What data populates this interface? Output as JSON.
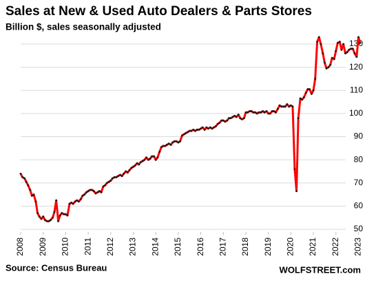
{
  "chart_data": {
    "type": "line",
    "title": "Sales at New & Used Auto Dealers & Parts Stores",
    "subtitle": "Billion $, sales seasonally adjusted",
    "source": "Source: Census Bureau",
    "credit": "WOLFSTREET.com",
    "x": [
      2008,
      2008.08,
      2008.17,
      2008.25,
      2008.33,
      2008.42,
      2008.5,
      2008.58,
      2008.67,
      2008.75,
      2008.83,
      2008.92,
      2009,
      2009.08,
      2009.17,
      2009.25,
      2009.33,
      2009.42,
      2009.5,
      2009.58,
      2009.67,
      2009.75,
      2009.83,
      2009.92,
      2010,
      2010.08,
      2010.17,
      2010.25,
      2010.33,
      2010.42,
      2010.5,
      2010.58,
      2010.67,
      2010.75,
      2010.83,
      2010.92,
      2011,
      2011.08,
      2011.17,
      2011.25,
      2011.33,
      2011.42,
      2011.5,
      2011.58,
      2011.67,
      2011.75,
      2011.83,
      2011.92,
      2012,
      2012.08,
      2012.17,
      2012.25,
      2012.33,
      2012.42,
      2012.5,
      2012.58,
      2012.67,
      2012.75,
      2012.83,
      2012.92,
      2013,
      2013.08,
      2013.17,
      2013.25,
      2013.33,
      2013.42,
      2013.5,
      2013.58,
      2013.67,
      2013.75,
      2013.83,
      2013.92,
      2014,
      2014.08,
      2014.17,
      2014.25,
      2014.33,
      2014.42,
      2014.5,
      2014.58,
      2014.67,
      2014.75,
      2014.83,
      2014.92,
      2015,
      2015.08,
      2015.17,
      2015.25,
      2015.33,
      2015.42,
      2015.5,
      2015.58,
      2015.67,
      2015.75,
      2015.83,
      2015.92,
      2016,
      2016.08,
      2016.17,
      2016.25,
      2016.33,
      2016.42,
      2016.5,
      2016.58,
      2016.67,
      2016.75,
      2016.83,
      2016.92,
      2017,
      2017.08,
      2017.17,
      2017.25,
      2017.33,
      2017.42,
      2017.5,
      2017.58,
      2017.67,
      2017.75,
      2017.83,
      2017.92,
      2018,
      2018.08,
      2018.17,
      2018.25,
      2018.33,
      2018.42,
      2018.5,
      2018.58,
      2018.67,
      2018.75,
      2018.83,
      2018.92,
      2019,
      2019.08,
      2019.17,
      2019.25,
      2019.33,
      2019.42,
      2019.5,
      2019.58,
      2019.67,
      2019.75,
      2019.83,
      2019.92,
      2020,
      2020.08,
      2020.17,
      2020.25,
      2020.33,
      2020.42,
      2020.5,
      2020.58,
      2020.67,
      2020.75,
      2020.83,
      2020.92,
      2021,
      2021.08,
      2021.17,
      2021.25,
      2021.33,
      2021.42,
      2021.5,
      2021.58,
      2021.67,
      2021.75,
      2021.83,
      2021.92,
      2022,
      2022.08,
      2022.17,
      2022.25,
      2022.33,
      2022.42,
      2022.5,
      2022.58,
      2022.67,
      2022.75,
      2022.83,
      2022.92,
      2023,
      2023.08
    ],
    "series": [
      {
        "color": "#ff0000",
        "marker_color": "#1a1a1a",
        "values": [
          74,
          72.5,
          72,
          70.5,
          69,
          67,
          64.5,
          65,
          62,
          57,
          55.5,
          54.5,
          55.5,
          54,
          53.5,
          53.5,
          54,
          55,
          57.5,
          62.5,
          53.5,
          56,
          57,
          56.5,
          56.5,
          56,
          61,
          61.5,
          61,
          62,
          62.5,
          62,
          63,
          64.5,
          65,
          66,
          66.5,
          67,
          67,
          66.5,
          65.5,
          66,
          66.5,
          66,
          68.5,
          69,
          70,
          70.5,
          71,
          72,
          72.5,
          72.5,
          73,
          73.5,
          73,
          74,
          75,
          74.5,
          75.5,
          76.5,
          77,
          77.5,
          78.5,
          78,
          79,
          79.5,
          80,
          81,
          80,
          80.5,
          81.5,
          81.5,
          80,
          81,
          83.5,
          85.5,
          86,
          86,
          86.5,
          87,
          86.5,
          87.5,
          88,
          88,
          87.5,
          88,
          90.5,
          91,
          91.5,
          92,
          92.5,
          92.5,
          93,
          92.5,
          93,
          93,
          93.5,
          94,
          93,
          94,
          93.5,
          94,
          93.5,
          94,
          94.5,
          95.5,
          96,
          97,
          97,
          96.5,
          97,
          98,
          98,
          98.5,
          99,
          98.5,
          99.5,
          98,
          97.5,
          98,
          100.5,
          100.5,
          101,
          101,
          100.5,
          100.5,
          100,
          100.5,
          100.5,
          101,
          100.5,
          101,
          100,
          100,
          101,
          101,
          100.5,
          102,
          103.5,
          103,
          103,
          103,
          104,
          103,
          103.5,
          103,
          76,
          66.5,
          98,
          106.5,
          106,
          107,
          109,
          110.5,
          110.5,
          108.5,
          110,
          115,
          131,
          133,
          130,
          126,
          122,
          119.5,
          120,
          121,
          124,
          123.5,
          127,
          130.5,
          131,
          127.5,
          130,
          126,
          126.5,
          127.5,
          128,
          128,
          126,
          124.5,
          133,
          130.5
        ]
      }
    ],
    "xlim": [
      2008,
      2023.2
    ],
    "xticks": [
      2008,
      2009,
      2010,
      2011,
      2012,
      2013,
      2014,
      2015,
      2016,
      2017,
      2018,
      2019,
      2020,
      2021,
      2022,
      2023
    ],
    "ylim": [
      50,
      130
    ],
    "yticks": [
      50,
      60,
      70,
      80,
      90,
      100,
      110,
      120,
      130
    ],
    "grid": true,
    "y_axis_side": "right"
  }
}
